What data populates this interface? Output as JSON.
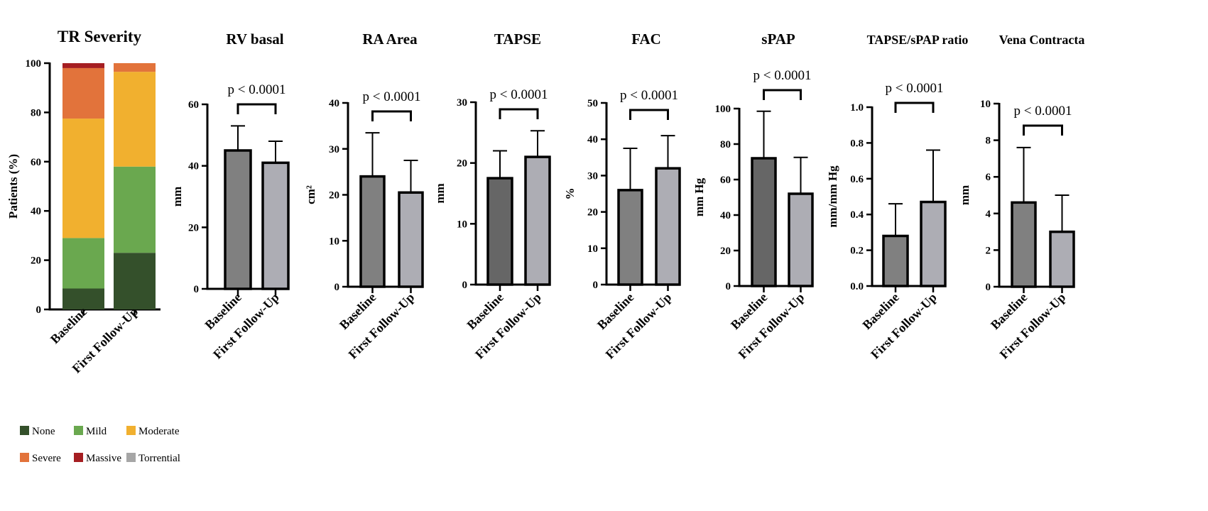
{
  "chart_data": [
    {
      "type": "bar",
      "stacked": true,
      "title": "TR Severity",
      "ylabel": "Patients (%)",
      "ylim": [
        0,
        100
      ],
      "yticks": [
        "0",
        "20",
        "40",
        "60",
        "80",
        "100"
      ],
      "categories": [
        "Baseline",
        "First Follow-Up"
      ],
      "series": [
        {
          "name": "None",
          "color": "#34502b",
          "values": [
            8.5,
            23
          ]
        },
        {
          "name": "Mild",
          "color": "#6aa84f",
          "values": [
            20.5,
            35
          ]
        },
        {
          "name": "Moderate",
          "color": "#f1b02f",
          "values": [
            48.5,
            38.5
          ]
        },
        {
          "name": "Severe",
          "color": "#e2733b",
          "values": [
            20.5,
            3.5
          ]
        },
        {
          "name": "Massive",
          "color": "#a51e22",
          "values": [
            2,
            0
          ]
        },
        {
          "name": "Torrential",
          "color": "#a6a6a6",
          "values": [
            0,
            0
          ]
        }
      ],
      "legend": "bottom-left"
    },
    {
      "type": "bar",
      "title": "RV basal",
      "ylabel": "mm",
      "ylim": [
        0,
        60
      ],
      "yticks": [
        "0",
        "20",
        "40",
        "60"
      ],
      "categories": [
        "Baseline",
        "First Follow-Up"
      ],
      "values": [
        45,
        41
      ],
      "errors": [
        8,
        7
      ],
      "p": "p < 0.0001",
      "colors": [
        "#808080",
        "#adadb4"
      ]
    },
    {
      "type": "bar",
      "title": "RA Area",
      "ylabel": "cm²",
      "ylim": [
        0,
        40
      ],
      "yticks": [
        "0",
        "10",
        "20",
        "30",
        "40"
      ],
      "categories": [
        "Baseline",
        "First Follow-Up"
      ],
      "values": [
        24,
        20.5
      ],
      "errors": [
        9.5,
        7
      ],
      "p": "p < 0.0001",
      "colors": [
        "#808080",
        "#adadb4"
      ]
    },
    {
      "type": "bar",
      "title": "TAPSE",
      "ylabel": "mm",
      "ylim": [
        0,
        30
      ],
      "yticks": [
        "0",
        "10",
        "20",
        "30"
      ],
      "categories": [
        "Baseline",
        "First Follow-Up"
      ],
      "values": [
        17.5,
        21
      ],
      "errors": [
        4.5,
        4.3
      ],
      "p": "p < 0.0001",
      "colors": [
        "#666666",
        "#adadb4"
      ]
    },
    {
      "type": "bar",
      "title": "FAC",
      "ylabel": "%",
      "ylim": [
        0,
        50
      ],
      "yticks": [
        "0",
        "10",
        "20",
        "30",
        "40",
        "50"
      ],
      "categories": [
        "Baseline",
        "First Follow-Up"
      ],
      "values": [
        26,
        32
      ],
      "errors": [
        11.5,
        9
      ],
      "p": "p < 0.0001",
      "colors": [
        "#808080",
        "#adadb4"
      ]
    },
    {
      "type": "bar",
      "title": "sPAP",
      "ylabel": "mm Hg",
      "ylim": [
        0,
        100
      ],
      "yticks": [
        "0",
        "20",
        "40",
        "60",
        "80",
        "100"
      ],
      "categories": [
        "Baseline",
        "First Follow-Up"
      ],
      "values": [
        72,
        52
      ],
      "errors": [
        26.5,
        20.5
      ],
      "p": "p < 0.0001",
      "colors": [
        "#666666",
        "#adadb4"
      ]
    },
    {
      "type": "bar",
      "title": "TAPSE/sPAP ratio",
      "ylabel": "mm/mm Hg",
      "ylim": [
        0,
        1.0
      ],
      "yticks": [
        "0.0",
        "0.2",
        "0.4",
        "0.6",
        "0.8",
        "1.0"
      ],
      "categories": [
        "Baseline",
        "First Follow-Up"
      ],
      "values": [
        0.28,
        0.47
      ],
      "errors": [
        0.18,
        0.29
      ],
      "p": "p < 0.0001",
      "colors": [
        "#808080",
        "#adadb4"
      ]
    },
    {
      "type": "bar",
      "title": "Vena Contracta",
      "ylabel": "mm",
      "ylim": [
        0,
        10
      ],
      "yticks": [
        "0",
        "2",
        "4",
        "6",
        "8",
        "10"
      ],
      "categories": [
        "Baseline",
        "First Follow-Up"
      ],
      "values": [
        4.6,
        3.0
      ],
      "errors": [
        3.0,
        2.0
      ],
      "p": "p < 0.0001",
      "colors": [
        "#808080",
        "#adadb4"
      ]
    }
  ]
}
